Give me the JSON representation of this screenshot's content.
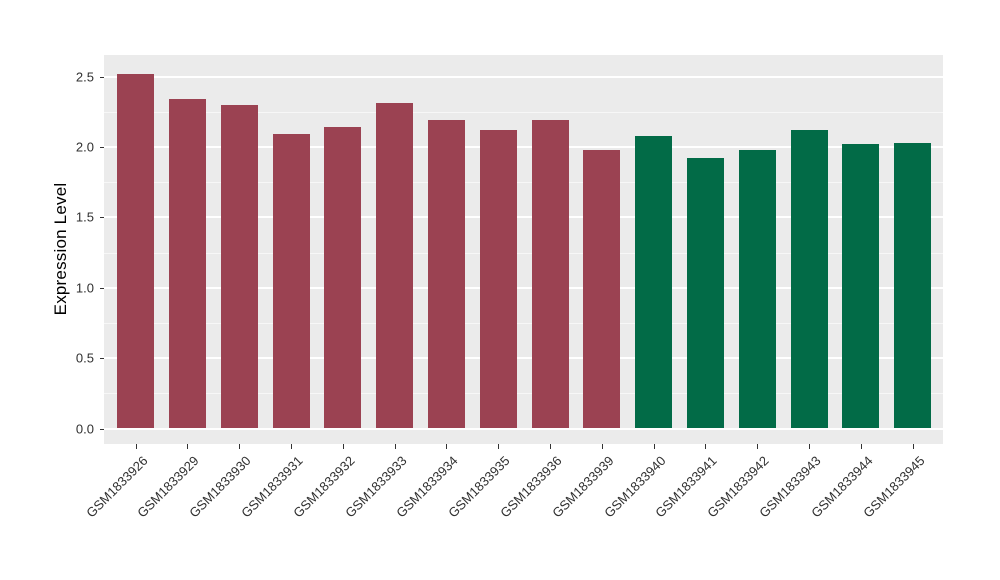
{
  "chart_data": {
    "type": "bar",
    "title": "",
    "xlabel": "",
    "ylabel": "Expression Level",
    "categories": [
      "GSM1833926",
      "GSM1833929",
      "GSM1833930",
      "GSM1833931",
      "GSM1833932",
      "GSM1833933",
      "GSM1833934",
      "GSM1833935",
      "GSM1833936",
      "GSM1833939",
      "GSM1833940",
      "GSM1833941",
      "GSM1833942",
      "GSM1833943",
      "GSM1833944",
      "GSM1833945"
    ],
    "values": [
      2.52,
      2.34,
      2.3,
      2.09,
      2.14,
      2.31,
      2.19,
      2.12,
      2.19,
      1.98,
      2.08,
      1.92,
      1.98,
      2.12,
      2.02,
      2.03
    ],
    "bar_colors": [
      "#9B4252",
      "#9B4252",
      "#9B4252",
      "#9B4252",
      "#9B4252",
      "#9B4252",
      "#9B4252",
      "#9B4252",
      "#9B4252",
      "#9B4252",
      "#026B47",
      "#026B47",
      "#026B47",
      "#026B47",
      "#026B47",
      "#026B47"
    ],
    "group_colors": {
      "maroon_group": "#9B4252",
      "green_group": "#026B47"
    },
    "ylim": [
      0,
      2.65
    ],
    "yticks": [
      0,
      0.5,
      1,
      1.5,
      2,
      2.5
    ],
    "ytick_labels": [
      "0.0",
      "0.5",
      "1.0",
      "1.5",
      "2.0",
      "2.5"
    ],
    "grid": true,
    "legend": "none",
    "panel_background": "#EBEBEB",
    "gridline_color": "#FFFFFF"
  }
}
